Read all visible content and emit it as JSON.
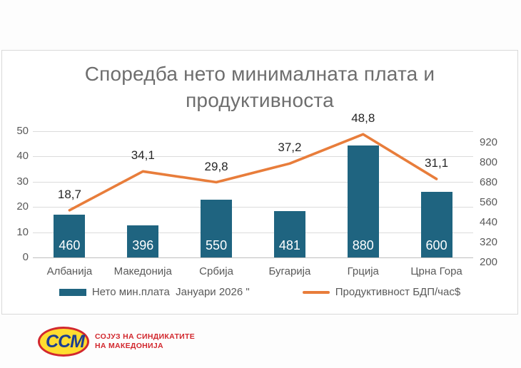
{
  "title": "Споредба нето минималната плата  и продуктивноста",
  "colors": {
    "bar": "#1F6480",
    "line": "#E87D3B",
    "axis_text": "#595959",
    "title_text": "#6e6e6e",
    "gridline": "#dcdcdc",
    "bar_value_label": "#ffffff",
    "point_label": "#262626"
  },
  "legend": {
    "items": [
      {
        "label": "Нето мин.плата  Јануари 2026 \"",
        "swatch": "bar"
      },
      {
        "label": "Продуктивност БДП/час$",
        "swatch": "line"
      }
    ]
  },
  "logo": {
    "monogram": "ССМ",
    "line1": "СОЈУЗ НА СИНДИКАТИТЕ",
    "line2": "НА МАКЕДОНИЈА",
    "red": "#D2282E",
    "yellow": "#FFDD30",
    "navy": "#1C3E91"
  },
  "chart_data": {
    "type": "bar",
    "title": "Споредба нето минималната плата  и продуктивноста",
    "categories": [
      "Албанија",
      "Македонија",
      "Србија",
      "Бугарија",
      "Грција",
      "Црна Гора"
    ],
    "series": [
      {
        "name": "Нето мин.плата  Јануари 2026 \"",
        "type": "bar",
        "axis": "right",
        "values": [
          460,
          396,
          550,
          481,
          880,
          600
        ],
        "labels": [
          "460",
          "396",
          "550",
          "481",
          "880",
          "600"
        ],
        "color": "#1F6480"
      },
      {
        "name": "Продуктивност БДП/час$",
        "type": "line",
        "axis": "left",
        "values": [
          18.7,
          34.1,
          29.8,
          37.2,
          48.8,
          31.1
        ],
        "labels": [
          "18,7",
          "34,1",
          "29,8",
          "37,2",
          "48,8",
          "31,1"
        ],
        "color": "#E87D3B"
      }
    ],
    "left_axis": {
      "min": 0,
      "max": 50,
      "ticks": [
        0,
        10,
        20,
        30,
        40,
        50
      ]
    },
    "right_axis": {
      "min": 200,
      "max": 920,
      "ticks": [
        200,
        320,
        440,
        560,
        680,
        800,
        920
      ]
    },
    "grid": "horizontal",
    "legend_position": "bottom"
  }
}
